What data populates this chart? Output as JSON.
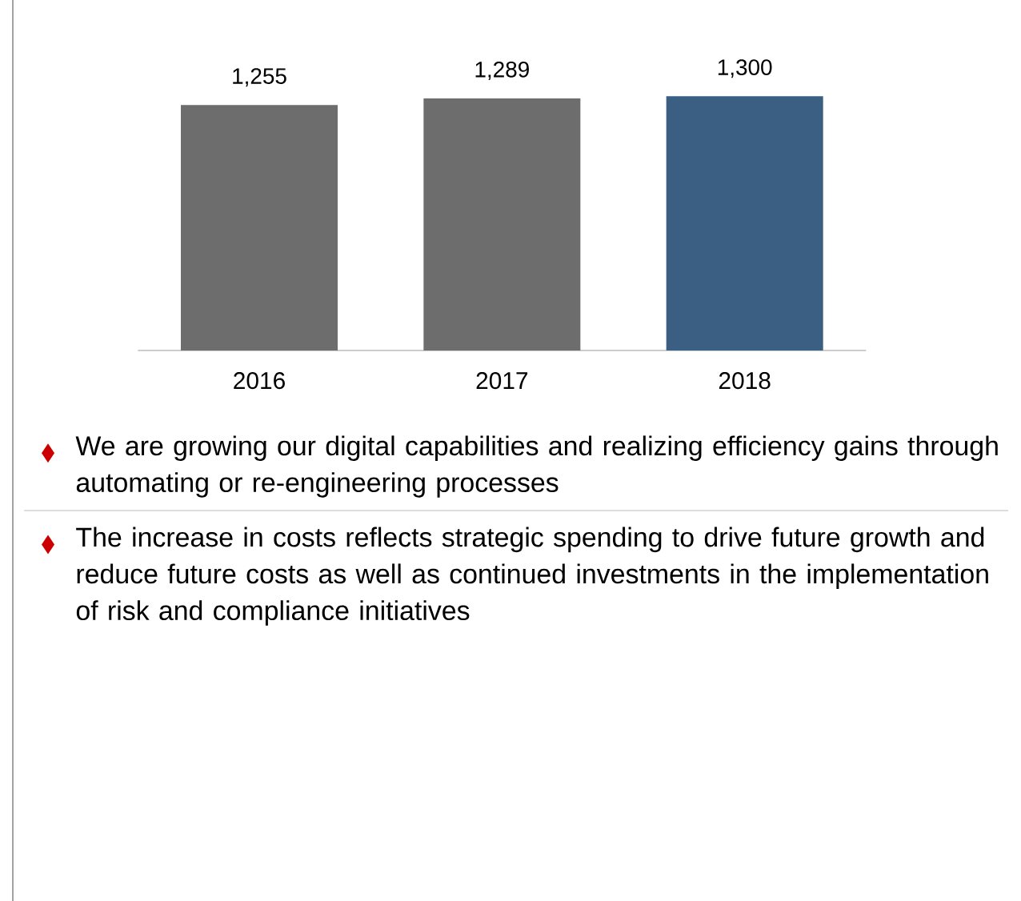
{
  "chart_data": {
    "type": "bar",
    "categories": [
      "2016",
      "2017",
      "2018"
    ],
    "values": [
      1255,
      1289,
      1300
    ],
    "colors": [
      "#6d6d6d",
      "#6d6d6d",
      "#3b5e83"
    ],
    "value_labels": [
      "1,255",
      "1,289",
      "1,300"
    ],
    "annotations": [
      "We are growing our digital capabilities and realizing efficiency gains through automating or re-engineering processes",
      "The increase in costs reflects strategic spending to drive future growth and reduce future costs as well as continued investments in the implementation of risk and compliance initiatives"
    ]
  }
}
